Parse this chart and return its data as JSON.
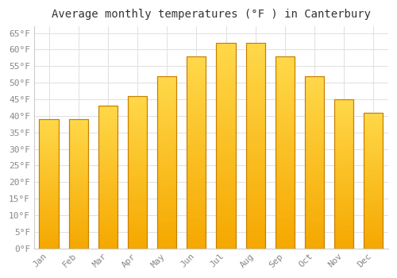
{
  "title": "Average monthly temperatures (°F ) in Canterbury",
  "months": [
    "Jan",
    "Feb",
    "Mar",
    "Apr",
    "May",
    "Jun",
    "Jul",
    "Aug",
    "Sep",
    "Oct",
    "Nov",
    "Dec"
  ],
  "values": [
    39,
    39,
    43,
    46,
    52,
    58,
    62,
    62,
    58,
    52,
    45,
    41
  ],
  "bar_color_top": "#FFD84A",
  "bar_color_bottom": "#F5A800",
  "bar_edge_color": "#C88000",
  "ylim": [
    0,
    67
  ],
  "yticks": [
    0,
    5,
    10,
    15,
    20,
    25,
    30,
    35,
    40,
    45,
    50,
    55,
    60,
    65
  ],
  "ytick_labels": [
    "0°F",
    "5°F",
    "10°F",
    "15°F",
    "20°F",
    "25°F",
    "30°F",
    "35°F",
    "40°F",
    "45°F",
    "50°F",
    "55°F",
    "60°F",
    "65°F"
  ],
  "title_fontsize": 10,
  "tick_fontsize": 8,
  "grid_color": "#e0e0e0",
  "background_color": "#ffffff",
  "font_family": "monospace",
  "bar_width": 0.65
}
